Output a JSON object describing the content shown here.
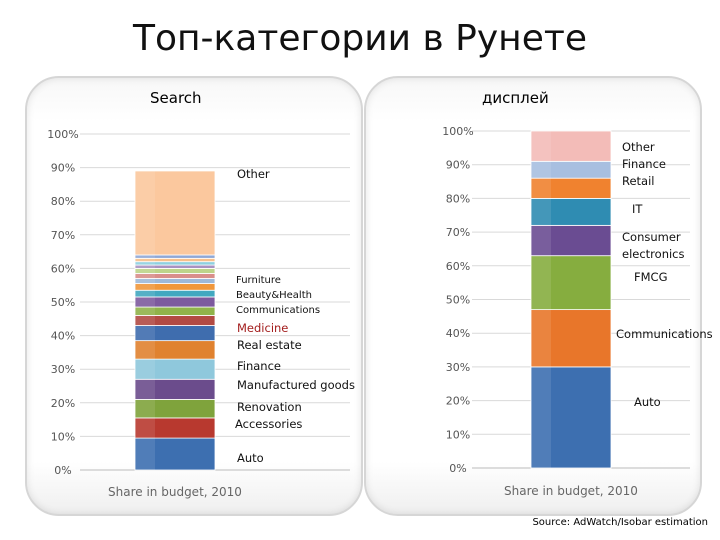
{
  "title": "Топ-категории в Рунете",
  "source": "Source: AdWatch/Isobar estimation",
  "chart_data": [
    {
      "type": "bar",
      "stacked": true,
      "panel_label": "Search",
      "xlabel": "Share in budget, 2010",
      "ylim": [
        0,
        100
      ],
      "yticks": [
        "0%",
        "10%",
        "20%",
        "30%",
        "40%",
        "50%",
        "60%",
        "70%",
        "80%",
        "90%",
        "100%"
      ],
      "grid": true,
      "segments": [
        {
          "name": "Auto",
          "value": 9.5,
          "color": "#3d6fb0"
        },
        {
          "name": "Accessories",
          "value": 6,
          "color": "#b8392f"
        },
        {
          "name": "Renovation",
          "value": 5.5,
          "color": "#7fa33c"
        },
        {
          "name": "Manufactured goods",
          "value": 6,
          "color": "#6b4c8c"
        },
        {
          "name": "Finance",
          "value": 6,
          "color": "#8fc8dc"
        },
        {
          "name": "Real estate",
          "value": 5.5,
          "color": "#e0822f"
        },
        {
          "name": "Medicine",
          "value": 4.5,
          "color": "#3f6dae"
        },
        {
          "name": "Communications",
          "value": 3,
          "color": "#b24a43"
        },
        {
          "name": "Beauty&Health",
          "value": 2.5,
          "color": "#90b34a"
        },
        {
          "name": "Furniture",
          "value": 3,
          "color": "#7d5a9e"
        },
        {
          "name": "",
          "value": 2,
          "color": "#42a8c0"
        },
        {
          "name": "",
          "value": 2,
          "color": "#f0973b"
        },
        {
          "name": "",
          "value": 1.5,
          "color": "#9db9da"
        },
        {
          "name": "",
          "value": 1.5,
          "color": "#d98e8a"
        },
        {
          "name": "",
          "value": 1.5,
          "color": "#bdd48a"
        },
        {
          "name": "",
          "value": 1,
          "color": "#a892c2"
        },
        {
          "name": "",
          "value": 1,
          "color": "#8ed0e0"
        },
        {
          "name": "",
          "value": 1,
          "color": "#f7c08c"
        },
        {
          "name": "",
          "value": 1,
          "color": "#8fa8d6"
        },
        {
          "name": "Other",
          "value": 25,
          "color": "#fbc89e"
        }
      ]
    },
    {
      "type": "bar",
      "stacked": true,
      "panel_label": "дисплей",
      "xlabel": "Share in budget, 2010",
      "ylim": [
        0,
        100
      ],
      "yticks": [
        "0%",
        "10%",
        "20%",
        "30%",
        "40%",
        "50%",
        "60%",
        "70%",
        "80%",
        "90%",
        "100%"
      ],
      "grid": true,
      "segments": [
        {
          "name": "Auto",
          "value": 30,
          "color": "#3d6fb0"
        },
        {
          "name": "Communications",
          "value": 17,
          "color": "#e8762a"
        },
        {
          "name": "FMCG",
          "value": 16,
          "color": "#86ad3f"
        },
        {
          "name": "Consumer electronics",
          "value": 9,
          "color": "#6a4c92"
        },
        {
          "name": "IT",
          "value": 8,
          "color": "#2f8cb2"
        },
        {
          "name": "Retail",
          "value": 6,
          "color": "#f0822f"
        },
        {
          "name": "Finance",
          "value": 5,
          "color": "#a8bfe0"
        },
        {
          "name": "Other",
          "value": 9,
          "color": "#f3bcb8"
        }
      ]
    }
  ],
  "labels": {
    "search": {
      "other": "Other",
      "furniture": "Furniture",
      "beauty": "Beauty&Health",
      "communications": "Communications",
      "medicine": "Medicine",
      "real_estate": "Real estate",
      "finance": "Finance",
      "manufactured": "Manufactured goods",
      "renovation": "Renovation",
      "accessories": "Accessories",
      "auto": "Auto"
    },
    "display": {
      "other": "Other",
      "finance": "Finance",
      "retail": "Retail",
      "it": "IT",
      "consumer_1": "Consumer",
      "consumer_2": "electronics",
      "fmcg": "FMCG",
      "communications": "Communications",
      "auto": "Auto"
    }
  }
}
